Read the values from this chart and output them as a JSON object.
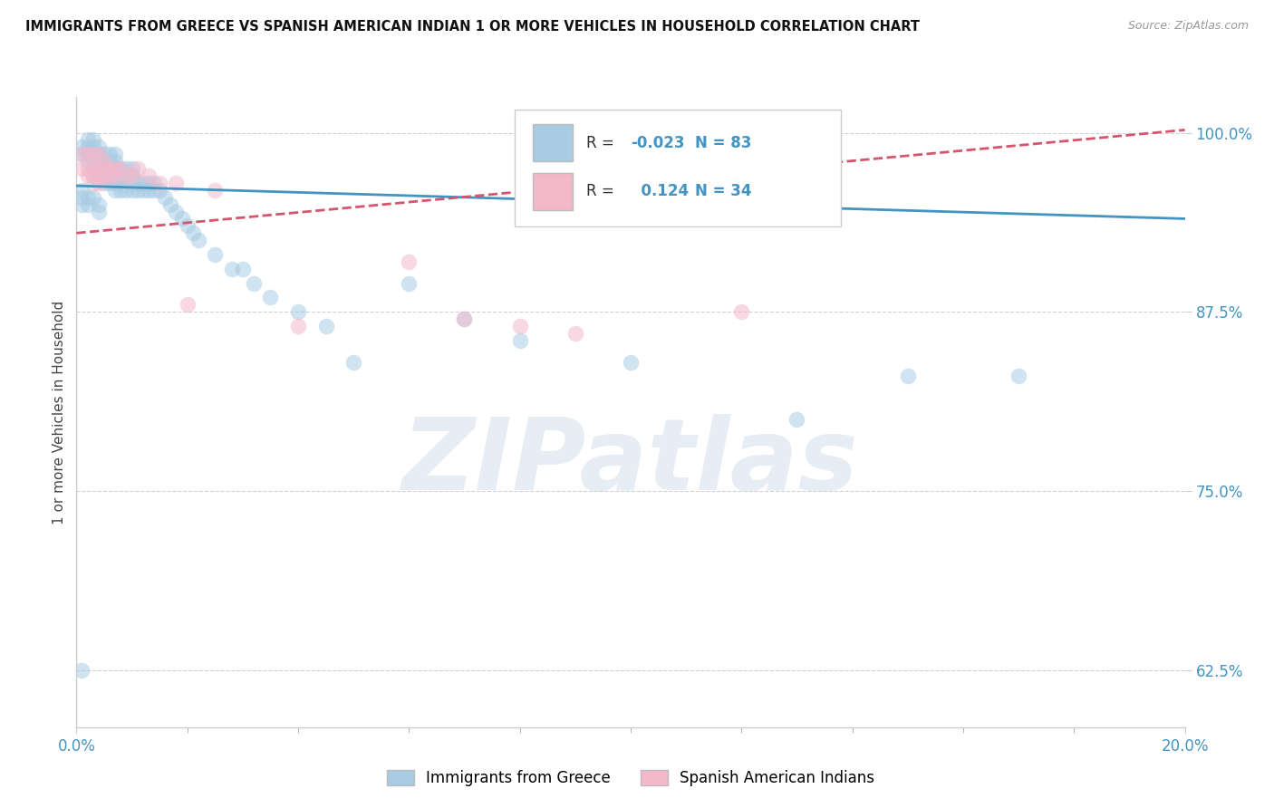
{
  "title": "IMMIGRANTS FROM GREECE VS SPANISH AMERICAN INDIAN 1 OR MORE VEHICLES IN HOUSEHOLD CORRELATION CHART",
  "source": "Source: ZipAtlas.com",
  "ylabel_label": "1 or more Vehicles in Household",
  "xmin": 0.0,
  "xmax": 0.2,
  "ymin": 0.585,
  "ymax": 1.025,
  "R_blue": -0.023,
  "N_blue": 83,
  "R_pink": 0.124,
  "N_pink": 34,
  "legend_blue": "Immigrants from Greece",
  "legend_pink": "Spanish American Indians",
  "blue_color": "#a8cce4",
  "pink_color": "#f4b8cb",
  "blue_line_color": "#4393c3",
  "pink_line_color": "#d6546e",
  "watermark": "ZIPatlas",
  "blue_line_y0": 0.963,
  "blue_line_y1": 0.94,
  "pink_line_y0": 0.93,
  "pink_line_y1": 1.002,
  "blue_scatter_x": [
    0.001,
    0.001,
    0.002,
    0.002,
    0.002,
    0.002,
    0.003,
    0.003,
    0.003,
    0.003,
    0.003,
    0.003,
    0.004,
    0.004,
    0.004,
    0.004,
    0.004,
    0.005,
    0.005,
    0.005,
    0.005,
    0.005,
    0.006,
    0.006,
    0.006,
    0.006,
    0.006,
    0.007,
    0.007,
    0.007,
    0.007,
    0.007,
    0.008,
    0.008,
    0.008,
    0.008,
    0.009,
    0.009,
    0.009,
    0.01,
    0.01,
    0.01,
    0.01,
    0.011,
    0.011,
    0.012,
    0.012,
    0.013,
    0.013,
    0.014,
    0.014,
    0.015,
    0.016,
    0.017,
    0.018,
    0.019,
    0.02,
    0.021,
    0.022,
    0.025,
    0.028,
    0.03,
    0.032,
    0.035,
    0.04,
    0.045,
    0.05,
    0.06,
    0.07,
    0.08,
    0.1,
    0.13,
    0.15,
    0.17,
    0.001,
    0.001,
    0.001,
    0.002,
    0.002,
    0.003,
    0.004,
    0.004,
    0.001
  ],
  "blue_scatter_y": [
    0.99,
    0.985,
    0.995,
    0.99,
    0.985,
    0.98,
    0.995,
    0.99,
    0.985,
    0.98,
    0.975,
    0.97,
    0.99,
    0.985,
    0.98,
    0.975,
    0.97,
    0.985,
    0.98,
    0.975,
    0.97,
    0.965,
    0.985,
    0.98,
    0.975,
    0.97,
    0.965,
    0.985,
    0.98,
    0.975,
    0.965,
    0.96,
    0.975,
    0.97,
    0.965,
    0.96,
    0.975,
    0.97,
    0.96,
    0.975,
    0.97,
    0.965,
    0.96,
    0.965,
    0.96,
    0.965,
    0.96,
    0.965,
    0.96,
    0.965,
    0.96,
    0.96,
    0.955,
    0.95,
    0.945,
    0.94,
    0.935,
    0.93,
    0.925,
    0.915,
    0.905,
    0.905,
    0.895,
    0.885,
    0.875,
    0.865,
    0.84,
    0.895,
    0.87,
    0.855,
    0.84,
    0.8,
    0.83,
    0.83,
    0.96,
    0.955,
    0.95,
    0.955,
    0.95,
    0.955,
    0.95,
    0.945,
    0.625
  ],
  "pink_scatter_x": [
    0.001,
    0.001,
    0.002,
    0.002,
    0.002,
    0.003,
    0.003,
    0.003,
    0.003,
    0.004,
    0.004,
    0.004,
    0.005,
    0.005,
    0.005,
    0.006,
    0.006,
    0.007,
    0.007,
    0.008,
    0.009,
    0.01,
    0.011,
    0.013,
    0.015,
    0.018,
    0.02,
    0.025,
    0.04,
    0.06,
    0.07,
    0.08,
    0.09,
    0.12
  ],
  "pink_scatter_y": [
    0.985,
    0.975,
    0.985,
    0.975,
    0.97,
    0.985,
    0.975,
    0.97,
    0.965,
    0.985,
    0.975,
    0.965,
    0.98,
    0.975,
    0.97,
    0.975,
    0.97,
    0.975,
    0.97,
    0.975,
    0.97,
    0.97,
    0.975,
    0.97,
    0.965,
    0.965,
    0.88,
    0.96,
    0.865,
    0.91,
    0.87,
    0.865,
    0.86,
    0.875
  ]
}
